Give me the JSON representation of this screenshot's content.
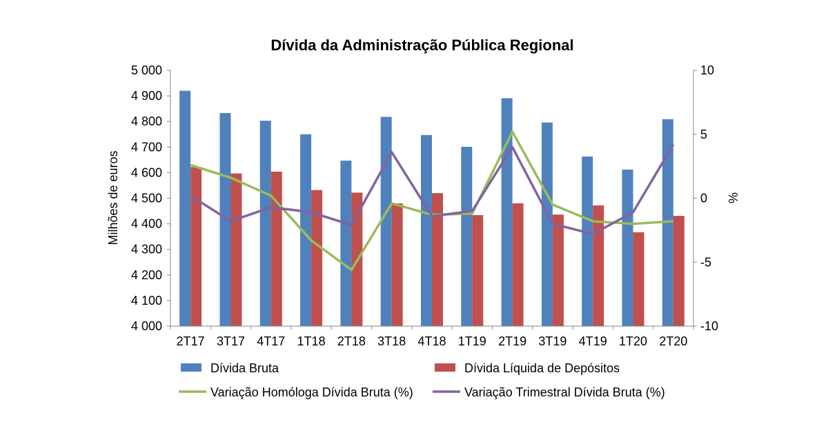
{
  "chart_data": {
    "type": "bar",
    "title": "Dívida da Administração Pública Regional",
    "categories": [
      "2T17",
      "3T17",
      "4T17",
      "1T18",
      "2T18",
      "3T18",
      "4T18",
      "1T19",
      "2T19",
      "3T19",
      "4T19",
      "1T20",
      "2T20"
    ],
    "ylabel": "Milhões de euros",
    "ylabel_right": "%",
    "ylim": [
      4000,
      5000
    ],
    "ylim_right": [
      -10,
      10
    ],
    "y_ticks": [
      "4 000",
      "4 100",
      "4 200",
      "4 300",
      "4 400",
      "4 500",
      "4 600",
      "4 700",
      "4 800",
      "4 900",
      "5 000"
    ],
    "y_ticks_right": [
      "-10",
      "-5",
      "0",
      "5",
      "10"
    ],
    "grid": false,
    "legend_position": "bottom",
    "series": [
      {
        "name": "Dívida Bruta",
        "kind": "bar",
        "axis": "left",
        "color": "#4f81bd",
        "values": [
          4920,
          4833,
          4803,
          4750,
          4647,
          4818,
          4747,
          4701,
          4891,
          4796,
          4663,
          4612,
          4809
        ]
      },
      {
        "name": "Dívida Líquida de Depósitos",
        "kind": "bar",
        "axis": "left",
        "color": "#c0504d",
        "values": [
          4622,
          4597,
          4604,
          4532,
          4522,
          4480,
          4520,
          4434,
          4480,
          4436,
          4472,
          4367,
          4431
        ]
      },
      {
        "name": "Variação Homóloga Dívida Bruta (%)",
        "kind": "line",
        "axis": "right",
        "color": "#9bbb59",
        "values": [
          2.6,
          1.6,
          0.2,
          -3.3,
          -5.6,
          -0.4,
          -1.3,
          -1.2,
          5.2,
          -0.5,
          -1.8,
          -2.0,
          -1.8
        ]
      },
      {
        "name": "Variação Trimestral Dívida Bruta (%)",
        "kind": "line",
        "axis": "right",
        "color": "#8064a2",
        "values": [
          0.2,
          -1.8,
          -0.7,
          -1.1,
          -2.1,
          3.6,
          -1.4,
          -1.0,
          4.0,
          -2.0,
          -2.8,
          -1.1,
          4.2
        ]
      }
    ]
  }
}
